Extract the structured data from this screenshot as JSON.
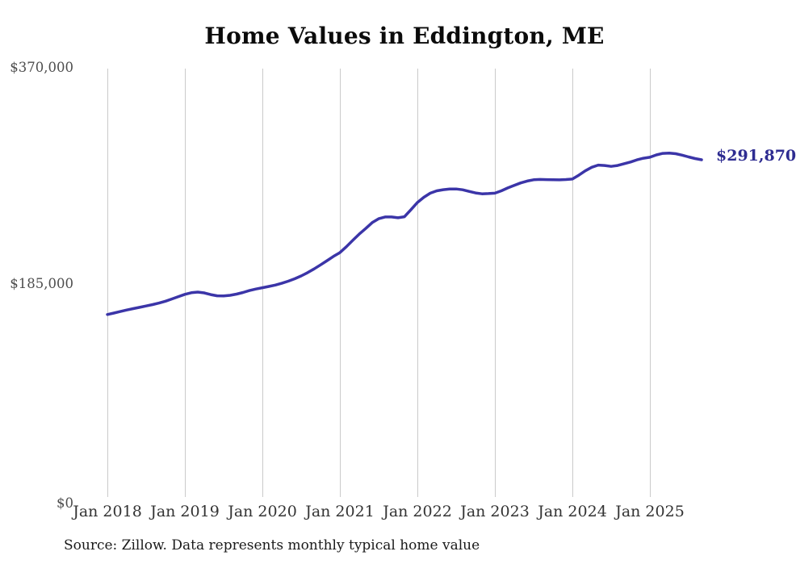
{
  "title": "Home Values in Eddington, ME",
  "source_note": "Source: Zillow. Data represents monthly typical home value",
  "end_label": "$291,870",
  "colors": {
    "line": "#3b35a8",
    "end_label": "#2e2c91",
    "grid": "#cacaca",
    "y_axis_text": "#4d4d4d",
    "x_axis_text": "#333333",
    "title_text": "#0b0b0b",
    "source_text": "#1a1a1a",
    "background": "#ffffff"
  },
  "y_axis": {
    "labels": [
      "$370,000",
      "$185,000",
      "$0"
    ],
    "max": 370000,
    "mid": 185000,
    "min": 0
  },
  "x_axis": {
    "labels": [
      "Jan 2018",
      "Jan 2019",
      "Jan 2020",
      "Jan 2021",
      "Jan 2022",
      "Jan 2023",
      "Jan 2024",
      "Jan 2025"
    ]
  },
  "chart_data": {
    "type": "line",
    "title": "Home Values in Eddington, ME",
    "xlabel": "",
    "ylabel": "",
    "ylim": [
      0,
      370000
    ],
    "grid": "vertical-only",
    "legend": "none",
    "frequency": "monthly",
    "start": "Jan 2018",
    "end": "Sep 2025",
    "final_value": 291870,
    "end_annotation": "$291,870",
    "values": [
      160500,
      161700,
      163000,
      164300,
      165500,
      166600,
      167700,
      168900,
      170200,
      171800,
      173700,
      175700,
      177600,
      179000,
      179500,
      178800,
      177400,
      176400,
      176200,
      176800,
      177800,
      179200,
      180800,
      182100,
      183200,
      184300,
      185500,
      187000,
      188800,
      190800,
      193200,
      196000,
      199200,
      202600,
      206200,
      209800,
      213000,
      218000,
      223500,
      228800,
      233500,
      238500,
      241800,
      243300,
      243300,
      242600,
      243500,
      249500,
      255600,
      260000,
      263500,
      265500,
      266500,
      267000,
      267100,
      266400,
      265000,
      263700,
      263000,
      263200,
      263500,
      265500,
      268000,
      270200,
      272200,
      273800,
      274900,
      275200,
      275000,
      274900,
      274800,
      275100,
      275500,
      278800,
      282500,
      285500,
      287400,
      287000,
      286300,
      287000,
      288500,
      290000,
      291800,
      293200,
      294000,
      296000,
      297300,
      297500,
      297000,
      295800,
      294300,
      292900,
      291870
    ]
  }
}
